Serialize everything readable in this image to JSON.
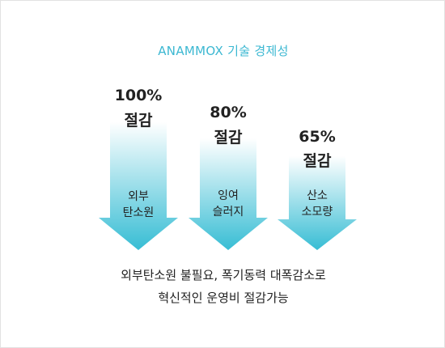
{
  "title": "ANAMMOX 기술 경제성",
  "accent_color": "#3cb8d2",
  "arrows": [
    {
      "percent": "100%",
      "reduction": "절감",
      "desc_line1": "외부",
      "desc_line2": "탄소원"
    },
    {
      "percent": "80%",
      "reduction": "절감",
      "desc_line1": "잉여",
      "desc_line2": "슬러지"
    },
    {
      "percent": "65%",
      "reduction": "절감",
      "desc_line1": "산소",
      "desc_line2": "소모량"
    }
  ],
  "caption_line1": "외부탄소원 불필요, 폭기동력 대폭감소로",
  "caption_line2": "혁신적인 운영비 절감가능"
}
